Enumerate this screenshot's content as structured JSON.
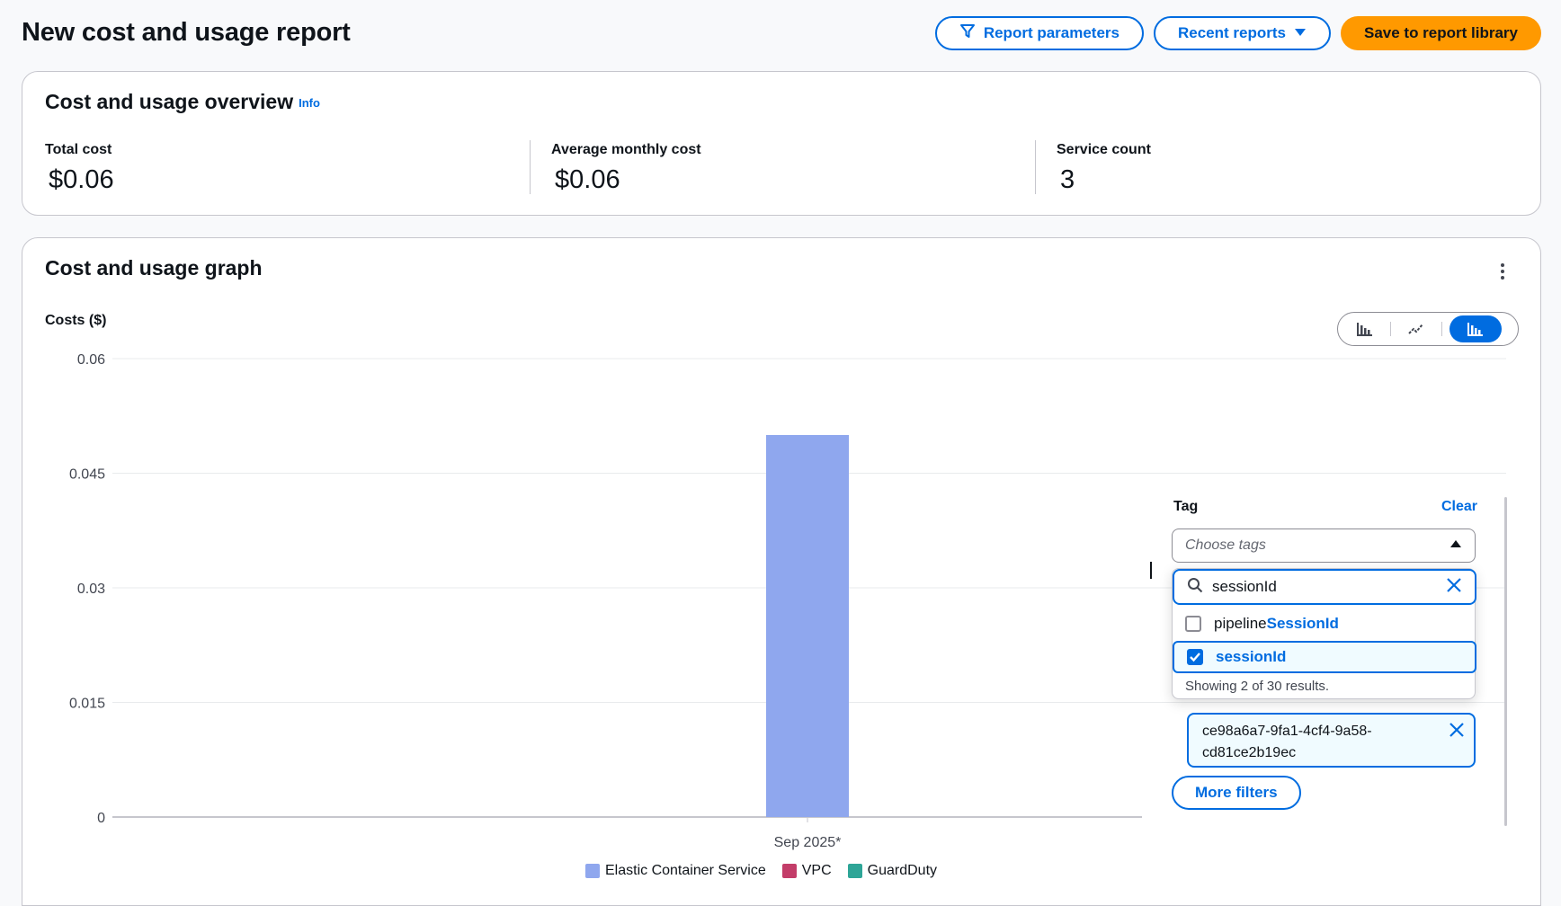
{
  "page": {
    "title": "New cost and usage report"
  },
  "header": {
    "report_parameters_label": "Report parameters",
    "recent_reports_label": "Recent reports",
    "save_label": "Save to report library"
  },
  "overview": {
    "title": "Cost and usage overview",
    "info_label": "Info",
    "metrics": [
      {
        "label": "Total cost",
        "value": "$0.06"
      },
      {
        "label": "Average monthly cost",
        "value": "$0.06"
      },
      {
        "label": "Service count",
        "value": "3"
      }
    ]
  },
  "graph": {
    "title": "Cost and usage graph",
    "chart_type_toggle": {
      "options": [
        "bar-chart-icon",
        "line-chart-icon",
        "stacked-bar-chart-icon"
      ],
      "selected": "stacked-bar-chart-icon"
    }
  },
  "chart_data": {
    "type": "bar",
    "ylabel": "Costs ($)",
    "xlabel": "",
    "categories": [
      "Sep 2025*"
    ],
    "ylim": [
      0,
      0.06
    ],
    "yticks": [
      "0.06",
      "0.045",
      "0.03",
      "0.015",
      "0"
    ],
    "ytick_values": [
      0.06,
      0.045,
      0.03,
      0.015,
      0
    ],
    "stacked": true,
    "grid": true,
    "series": [
      {
        "name": "Elastic Container Service",
        "values": [
          0.05
        ],
        "color": "#8fa7ee"
      },
      {
        "name": "VPC",
        "values": [
          0
        ],
        "color": "#c33d69"
      },
      {
        "name": "GuardDuty",
        "values": [
          0
        ],
        "color": "#2ea597"
      }
    ],
    "legend_position": "bottom"
  },
  "filter": {
    "tag_label": "Tag",
    "clear_label": "Clear",
    "select_placeholder": "Choose tags",
    "search_value": "sessionId",
    "options": [
      {
        "prefix": "pipeline",
        "match": "SessionId",
        "checked": false
      },
      {
        "prefix": "",
        "match": "sessionId",
        "checked": true
      }
    ],
    "results_text": "Showing 2 of 30 results.",
    "selected_token_line1": "ce98a6a7-9fa1-4cf4-9a58-",
    "selected_token_line2": "cd81ce2b19ec",
    "more_filters_label": "More filters"
  },
  "colors": {
    "accent": "#006ce0",
    "primary_button": "#ff9900"
  }
}
